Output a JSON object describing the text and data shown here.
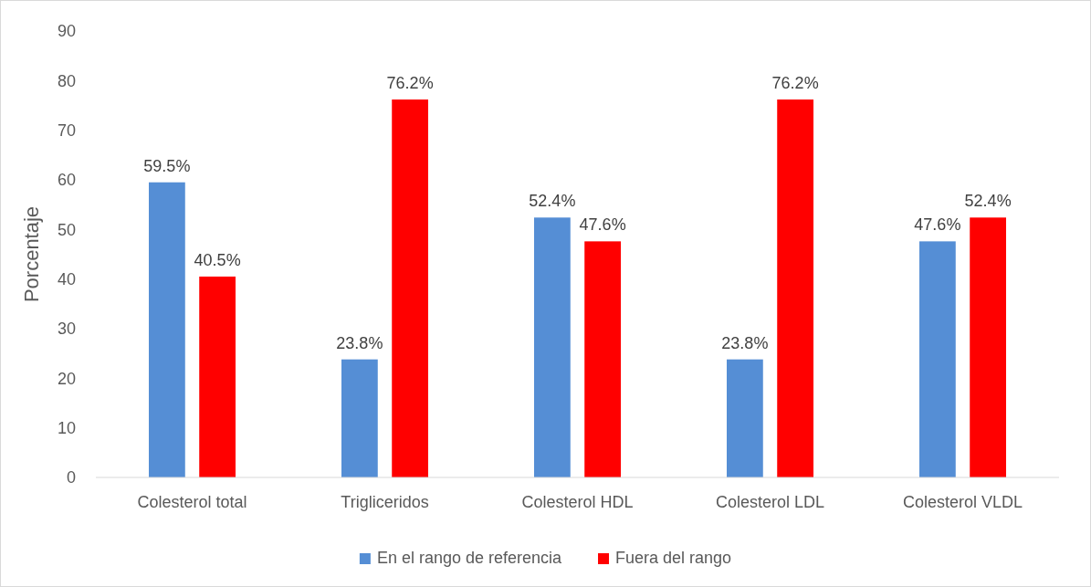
{
  "chart_data": {
    "type": "bar",
    "ylabel": "Porcentaje",
    "categories": [
      "Colesterol total",
      "Trigliceridos",
      "Colesterol HDL",
      "Colesterol LDL",
      "Colesterol VLDL"
    ],
    "series": [
      {
        "name": "En el rango de referencia",
        "color": "#558ed5",
        "values": [
          59.5,
          23.8,
          52.4,
          23.8,
          47.6
        ],
        "value_labels": [
          "59.5%",
          "23.8%",
          "52.4%",
          "23.8%",
          "47.6%"
        ]
      },
      {
        "name": "Fuera del rango",
        "color": "#ff0000",
        "values": [
          40.5,
          76.2,
          47.6,
          76.2,
          52.4
        ],
        "value_labels": [
          "40.5%",
          "76.2%",
          "47.6%",
          "76.2%",
          "52.4%"
        ]
      }
    ],
    "ylim": [
      0,
      90
    ],
    "yticks": [
      0,
      10,
      20,
      30,
      40,
      50,
      60,
      70,
      80,
      90
    ],
    "grid": false,
    "legend": "bottom"
  }
}
